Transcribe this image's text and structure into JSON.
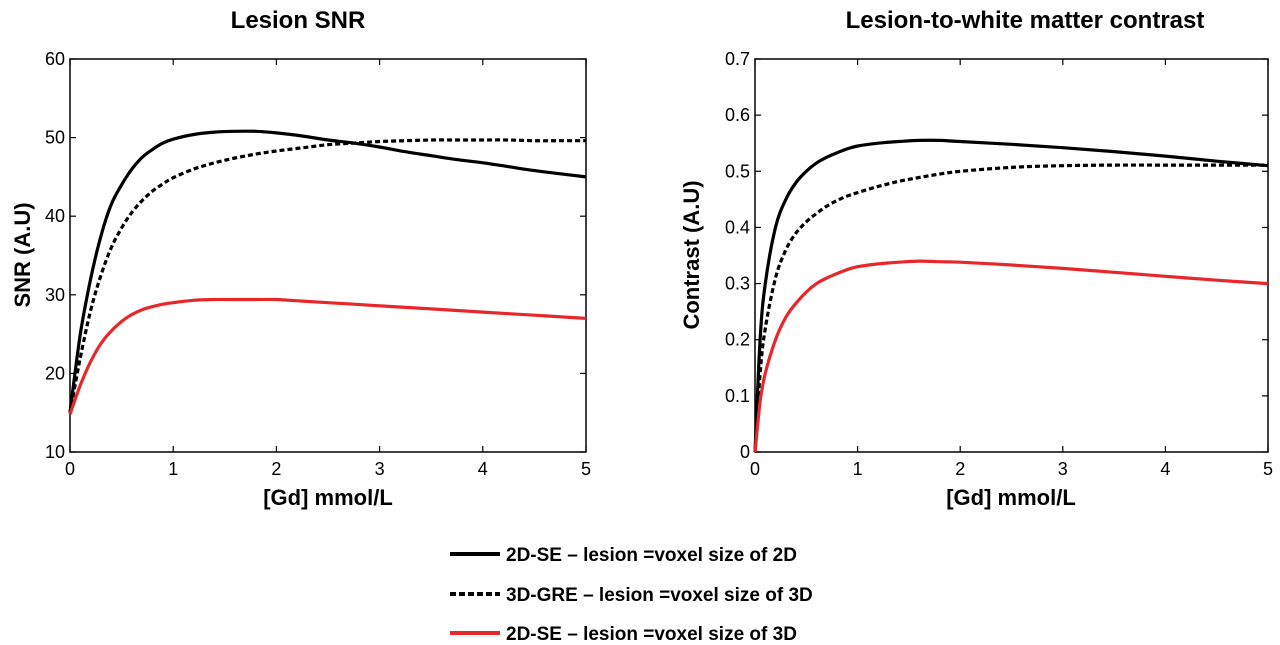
{
  "chart_data": [
    {
      "type": "line",
      "title": "Lesion SNR",
      "xlabel": "[Gd] mmol/L",
      "ylabel": "SNR (A.U)",
      "xlim": [
        0,
        5
      ],
      "ylim": [
        10,
        60
      ],
      "xticks": [
        0,
        1,
        2,
        3,
        4,
        5
      ],
      "yticks": [
        10,
        20,
        30,
        40,
        50,
        60
      ],
      "grid": false,
      "x": [
        0,
        0.1,
        0.2,
        0.3,
        0.4,
        0.5,
        0.6,
        0.7,
        0.8,
        0.9,
        1.0,
        1.2,
        1.4,
        1.6,
        1.8,
        2.0,
        2.25,
        2.5,
        2.75,
        3.0,
        3.25,
        3.5,
        3.75,
        4.0,
        4.25,
        4.5,
        4.75,
        5.0
      ],
      "series": [
        {
          "name": "2D-SE – lesion =voxel size of 2D",
          "style": "solid",
          "color": "#000000",
          "values": [
            15,
            25,
            32,
            37.5,
            41.5,
            44,
            46,
            47.5,
            48.5,
            49.3,
            49.8,
            50.4,
            50.7,
            50.8,
            50.8,
            50.6,
            50.2,
            49.7,
            49.3,
            48.8,
            48.2,
            47.7,
            47.2,
            46.8,
            46.3,
            45.8,
            45.4,
            45
          ]
        },
        {
          "name": "3D-GRE – lesion =voxel size of 3D",
          "style": "dashed",
          "color": "#000000",
          "values": [
            15,
            22,
            28,
            32.5,
            36,
            38.5,
            40.5,
            42,
            43.2,
            44.1,
            44.9,
            46,
            46.8,
            47.4,
            47.9,
            48.3,
            48.7,
            49.1,
            49.3,
            49.5,
            49.6,
            49.7,
            49.7,
            49.7,
            49.7,
            49.6,
            49.6,
            49.6
          ]
        },
        {
          "name": "2D-SE – lesion =voxel size of 3D",
          "style": "solid",
          "color": "#e8272b",
          "values": [
            14.8,
            18.5,
            21.5,
            23.8,
            25.4,
            26.6,
            27.5,
            28.1,
            28.5,
            28.8,
            29.0,
            29.3,
            29.4,
            29.4,
            29.4,
            29.4,
            29.2,
            29.0,
            28.8,
            28.6,
            28.4,
            28.2,
            28.0,
            27.8,
            27.6,
            27.4,
            27.2,
            27.0
          ]
        }
      ]
    },
    {
      "type": "line",
      "title": "Lesion-to-white matter contrast",
      "xlabel": "[Gd] mmol/L",
      "ylabel": "Contrast (A.U)",
      "xlim": [
        0,
        5
      ],
      "ylim": [
        0,
        0.7
      ],
      "xticks": [
        0,
        1,
        2,
        3,
        4,
        5
      ],
      "yticks": [
        0,
        0.1,
        0.2,
        0.3,
        0.4,
        0.5,
        0.6,
        0.7
      ],
      "grid": false,
      "x": [
        0,
        0.05,
        0.1,
        0.2,
        0.3,
        0.4,
        0.5,
        0.6,
        0.7,
        0.8,
        0.9,
        1.0,
        1.2,
        1.4,
        1.6,
        1.8,
        2.0,
        2.5,
        3.0,
        3.5,
        4.0,
        4.5,
        5.0
      ],
      "series": [
        {
          "name": "2D-SE – lesion =voxel size of 2D",
          "style": "solid",
          "color": "#000000",
          "values": [
            0,
            0.2,
            0.3,
            0.4,
            0.45,
            0.48,
            0.5,
            0.515,
            0.525,
            0.533,
            0.54,
            0.545,
            0.55,
            0.553,
            0.555,
            0.555,
            0.553,
            0.548,
            0.542,
            0.535,
            0.527,
            0.518,
            0.51
          ]
        },
        {
          "name": "3D-GRE – lesion =voxel size of 3D",
          "style": "dashed",
          "color": "#000000",
          "values": [
            0,
            0.14,
            0.22,
            0.31,
            0.36,
            0.39,
            0.41,
            0.425,
            0.438,
            0.448,
            0.456,
            0.462,
            0.473,
            0.482,
            0.489,
            0.495,
            0.5,
            0.507,
            0.51,
            0.511,
            0.511,
            0.511,
            0.511
          ]
        },
        {
          "name": "2D-SE – lesion =voxel size of 3D",
          "style": "solid",
          "color": "#e8272b",
          "values": [
            0,
            0.09,
            0.14,
            0.2,
            0.24,
            0.265,
            0.285,
            0.3,
            0.31,
            0.318,
            0.325,
            0.33,
            0.335,
            0.338,
            0.34,
            0.339,
            0.338,
            0.333,
            0.327,
            0.32,
            0.313,
            0.306,
            0.3
          ]
        }
      ]
    }
  ],
  "legend": {
    "placement": "bottom-center",
    "entries": [
      {
        "label": "2D-SE – lesion =voxel size of 2D",
        "style": "solid",
        "color": "#000000"
      },
      {
        "label": "3D-GRE – lesion =voxel size of 3D",
        "style": "dashed",
        "color": "#000000"
      },
      {
        "label": "2D-SE – lesion =voxel size of 3D",
        "style": "solid",
        "color": "#e8272b"
      }
    ]
  }
}
